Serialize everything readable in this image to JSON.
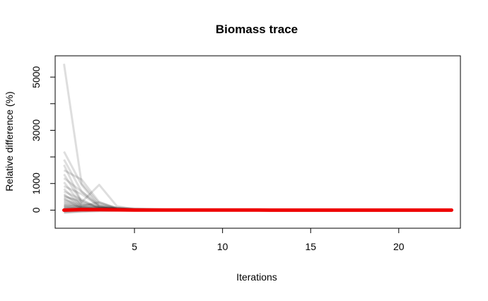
{
  "chart_data": {
    "type": "line",
    "title": "Biomass trace",
    "xlabel": "Iterations",
    "ylabel": "Relative difference (%)",
    "xlim": [
      0.5,
      23.5
    ],
    "ylim": [
      -680,
      5800
    ],
    "x_ticks": [
      5,
      10,
      15,
      20
    ],
    "y_ticks": [
      0,
      1000,
      3000,
      5000
    ],
    "grid": false,
    "legend": "none",
    "trace_color": "#000000",
    "highlight_color": "#ee0000",
    "series": [
      {
        "x": [
          1,
          2,
          3,
          4,
          5
        ],
        "values": [
          5500,
          1000,
          250,
          80,
          20
        ]
      },
      {
        "x": [
          1,
          2,
          3,
          4,
          5,
          6
        ],
        "values": [
          2200,
          950,
          150,
          50,
          20,
          10
        ]
      },
      {
        "x": [
          1,
          2,
          3,
          4,
          5,
          6
        ],
        "values": [
          1900,
          700,
          120,
          40,
          15,
          5
        ]
      },
      {
        "x": [
          1,
          2,
          3,
          4
        ],
        "values": [
          1700,
          300,
          80,
          20
        ]
      },
      {
        "x": [
          1,
          2,
          3,
          4,
          5
        ],
        "values": [
          1500,
          1150,
          300,
          60,
          20
        ]
      },
      {
        "x": [
          1,
          2,
          3,
          4,
          5
        ],
        "values": [
          1350,
          300,
          950,
          150,
          30
        ]
      },
      {
        "x": [
          1,
          2,
          3,
          4
        ],
        "values": [
          1200,
          700,
          200,
          50
        ]
      },
      {
        "x": [
          1,
          2,
          3,
          4,
          5,
          6,
          7
        ],
        "values": [
          1050,
          200,
          100,
          40,
          20,
          10,
          5
        ]
      },
      {
        "x": [
          1,
          2,
          3,
          4
        ],
        "values": [
          900,
          600,
          150,
          30
        ]
      },
      {
        "x": [
          1,
          2,
          3,
          4,
          5
        ],
        "values": [
          800,
          150,
          300,
          80,
          10
        ]
      },
      {
        "x": [
          1,
          2,
          3,
          4
        ],
        "values": [
          700,
          400,
          60,
          10
        ]
      },
      {
        "x": [
          1,
          2,
          3
        ],
        "values": [
          600,
          100,
          20
        ]
      },
      {
        "x": [
          1,
          2,
          3,
          4,
          5,
          6,
          7,
          8
        ],
        "values": [
          550,
          250,
          150,
          100,
          60,
          40,
          20,
          10
        ]
      },
      {
        "x": [
          1,
          2,
          3,
          4
        ],
        "values": [
          500,
          350,
          100,
          20
        ]
      },
      {
        "x": [
          1,
          2,
          3
        ],
        "values": [
          450,
          50,
          10
        ]
      },
      {
        "x": [
          1,
          2,
          3,
          4,
          5
        ],
        "values": [
          400,
          200,
          80,
          30,
          10
        ]
      },
      {
        "x": [
          1,
          2,
          3
        ],
        "values": [
          350,
          150,
          30
        ]
      },
      {
        "x": [
          1,
          2,
          3,
          4
        ],
        "values": [
          300,
          100,
          40,
          10
        ]
      },
      {
        "x": [
          1,
          2,
          3,
          4,
          5,
          6,
          7
        ],
        "values": [
          250,
          120,
          80,
          60,
          40,
          30,
          20
        ]
      },
      {
        "x": [
          1,
          2,
          3
        ],
        "values": [
          200,
          80,
          20
        ]
      },
      {
        "x": [
          1,
          2,
          3,
          4
        ],
        "values": [
          150,
          60,
          20,
          5
        ]
      },
      {
        "x": [
          1,
          2,
          3
        ],
        "values": [
          100,
          40,
          10
        ]
      },
      {
        "x": [
          1,
          2,
          3,
          4,
          5,
          6
        ],
        "values": [
          80,
          50,
          30,
          20,
          10,
          5
        ]
      },
      {
        "x": [
          1,
          2,
          3
        ],
        "values": [
          50,
          20,
          5
        ]
      },
      {
        "x": [
          1,
          2,
          3,
          4
        ],
        "values": [
          -50,
          -20,
          -10,
          0
        ]
      },
      {
        "x": [
          1,
          2,
          3
        ],
        "values": [
          -100,
          -40,
          -10
        ]
      },
      {
        "x": [
          1,
          2,
          3,
          4,
          5
        ],
        "values": [
          -80,
          -60,
          -40,
          -20,
          0
        ]
      },
      {
        "x": [
          1,
          2,
          3
        ],
        "values": [
          120,
          30,
          5
        ]
      },
      {
        "x": [
          1,
          2,
          3,
          4,
          5,
          6,
          7,
          8
        ],
        "values": [
          180,
          110,
          90,
          70,
          50,
          30,
          15,
          5
        ]
      }
    ],
    "highlight_series": {
      "x": [
        1,
        2,
        3,
        4,
        5,
        6,
        7,
        8,
        9,
        10,
        11,
        12,
        13,
        14,
        15,
        16,
        17,
        18,
        19,
        20,
        21,
        22,
        23
      ],
      "values": [
        0,
        20,
        15,
        10,
        5,
        5,
        5,
        3,
        3,
        2,
        2,
        2,
        1,
        1,
        1,
        1,
        1,
        0,
        0,
        0,
        0,
        0,
        0
      ]
    }
  }
}
